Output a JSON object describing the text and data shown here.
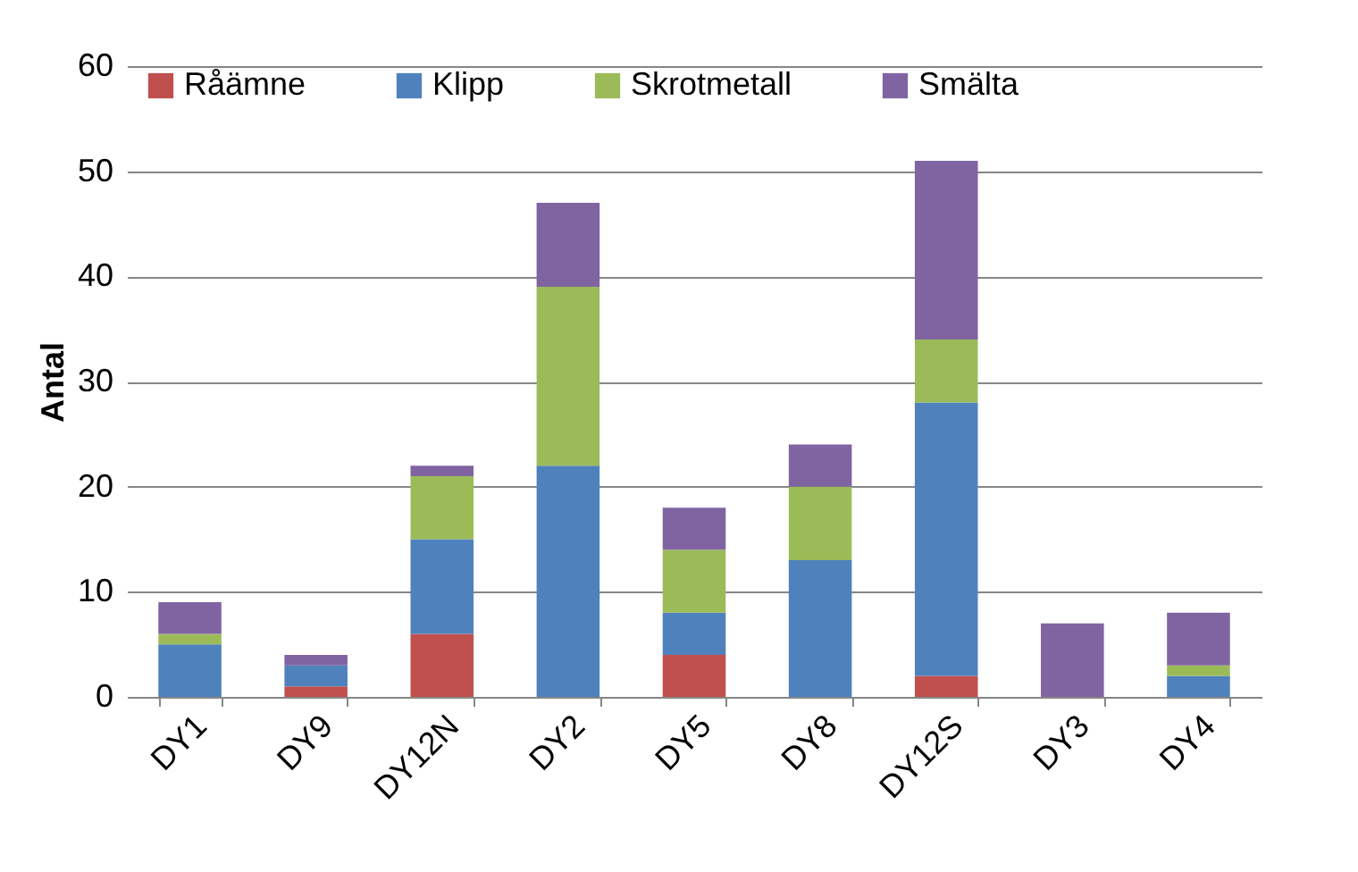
{
  "chart_data": {
    "type": "bar",
    "stacked": true,
    "ylabel": "Antal",
    "categories": [
      "DY1",
      "DY9",
      "DY12N",
      "DY2",
      "DY5",
      "DY8",
      "DY12S",
      "DY3",
      "DY4"
    ],
    "series": [
      {
        "name": "Råämne",
        "color": "#c0504d",
        "values": [
          0,
          1,
          6,
          0,
          4,
          0,
          2,
          0,
          0
        ]
      },
      {
        "name": "Klipp",
        "color": "#4f81bd",
        "values": [
          5,
          2,
          9,
          22,
          4,
          13,
          26,
          0,
          2
        ]
      },
      {
        "name": "Skrotmetall",
        "color": "#9bbb59",
        "values": [
          1,
          0,
          6,
          17,
          6,
          7,
          6,
          0,
          1
        ]
      },
      {
        "name": "Smälta",
        "color": "#8064a2",
        "values": [
          3,
          1,
          1,
          8,
          4,
          4,
          17,
          7,
          5
        ]
      }
    ],
    "ylim": [
      0,
      60
    ],
    "yticks": [
      0,
      10,
      20,
      30,
      40,
      50,
      60
    ],
    "grid": "y",
    "legend": "top"
  }
}
